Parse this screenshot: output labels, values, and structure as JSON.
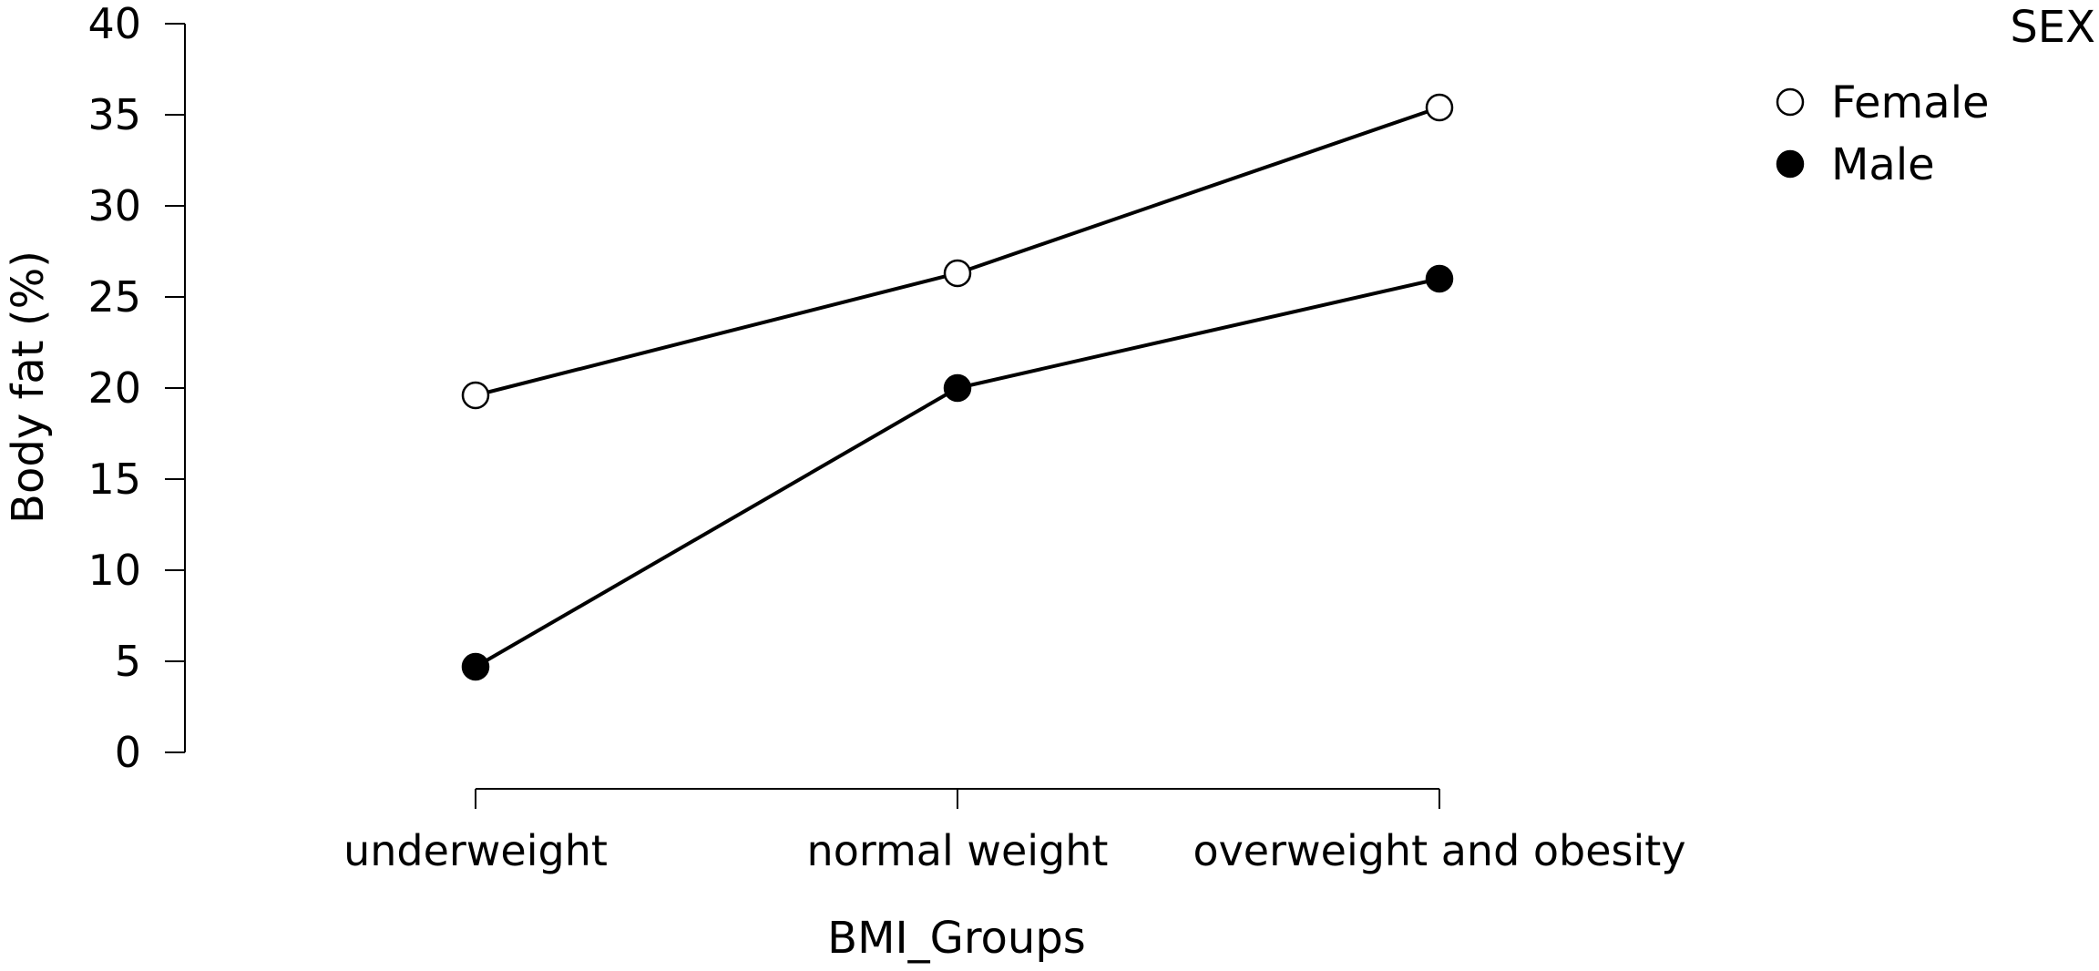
{
  "chart_data": {
    "type": "line",
    "xlabel": "BMI_Groups",
    "ylabel": "Body fat (%)",
    "categories": [
      "underweight",
      "normal weight",
      "overweight and obesity"
    ],
    "ylim": [
      0,
      40
    ],
    "yticks": [
      0,
      5,
      10,
      15,
      20,
      25,
      30,
      35,
      40
    ],
    "grid": false,
    "legend": {
      "title": "SEX",
      "position": "top-right"
    },
    "series": [
      {
        "name": "Female",
        "values": [
          19.6,
          26.3,
          35.4
        ],
        "marker": "open-circle",
        "marker_fill": "#ffffff",
        "color": "#000000"
      },
      {
        "name": "Male",
        "values": [
          4.7,
          20.0,
          26.0
        ],
        "marker": "filled-circle",
        "marker_fill": "#000000",
        "color": "#000000"
      }
    ]
  }
}
